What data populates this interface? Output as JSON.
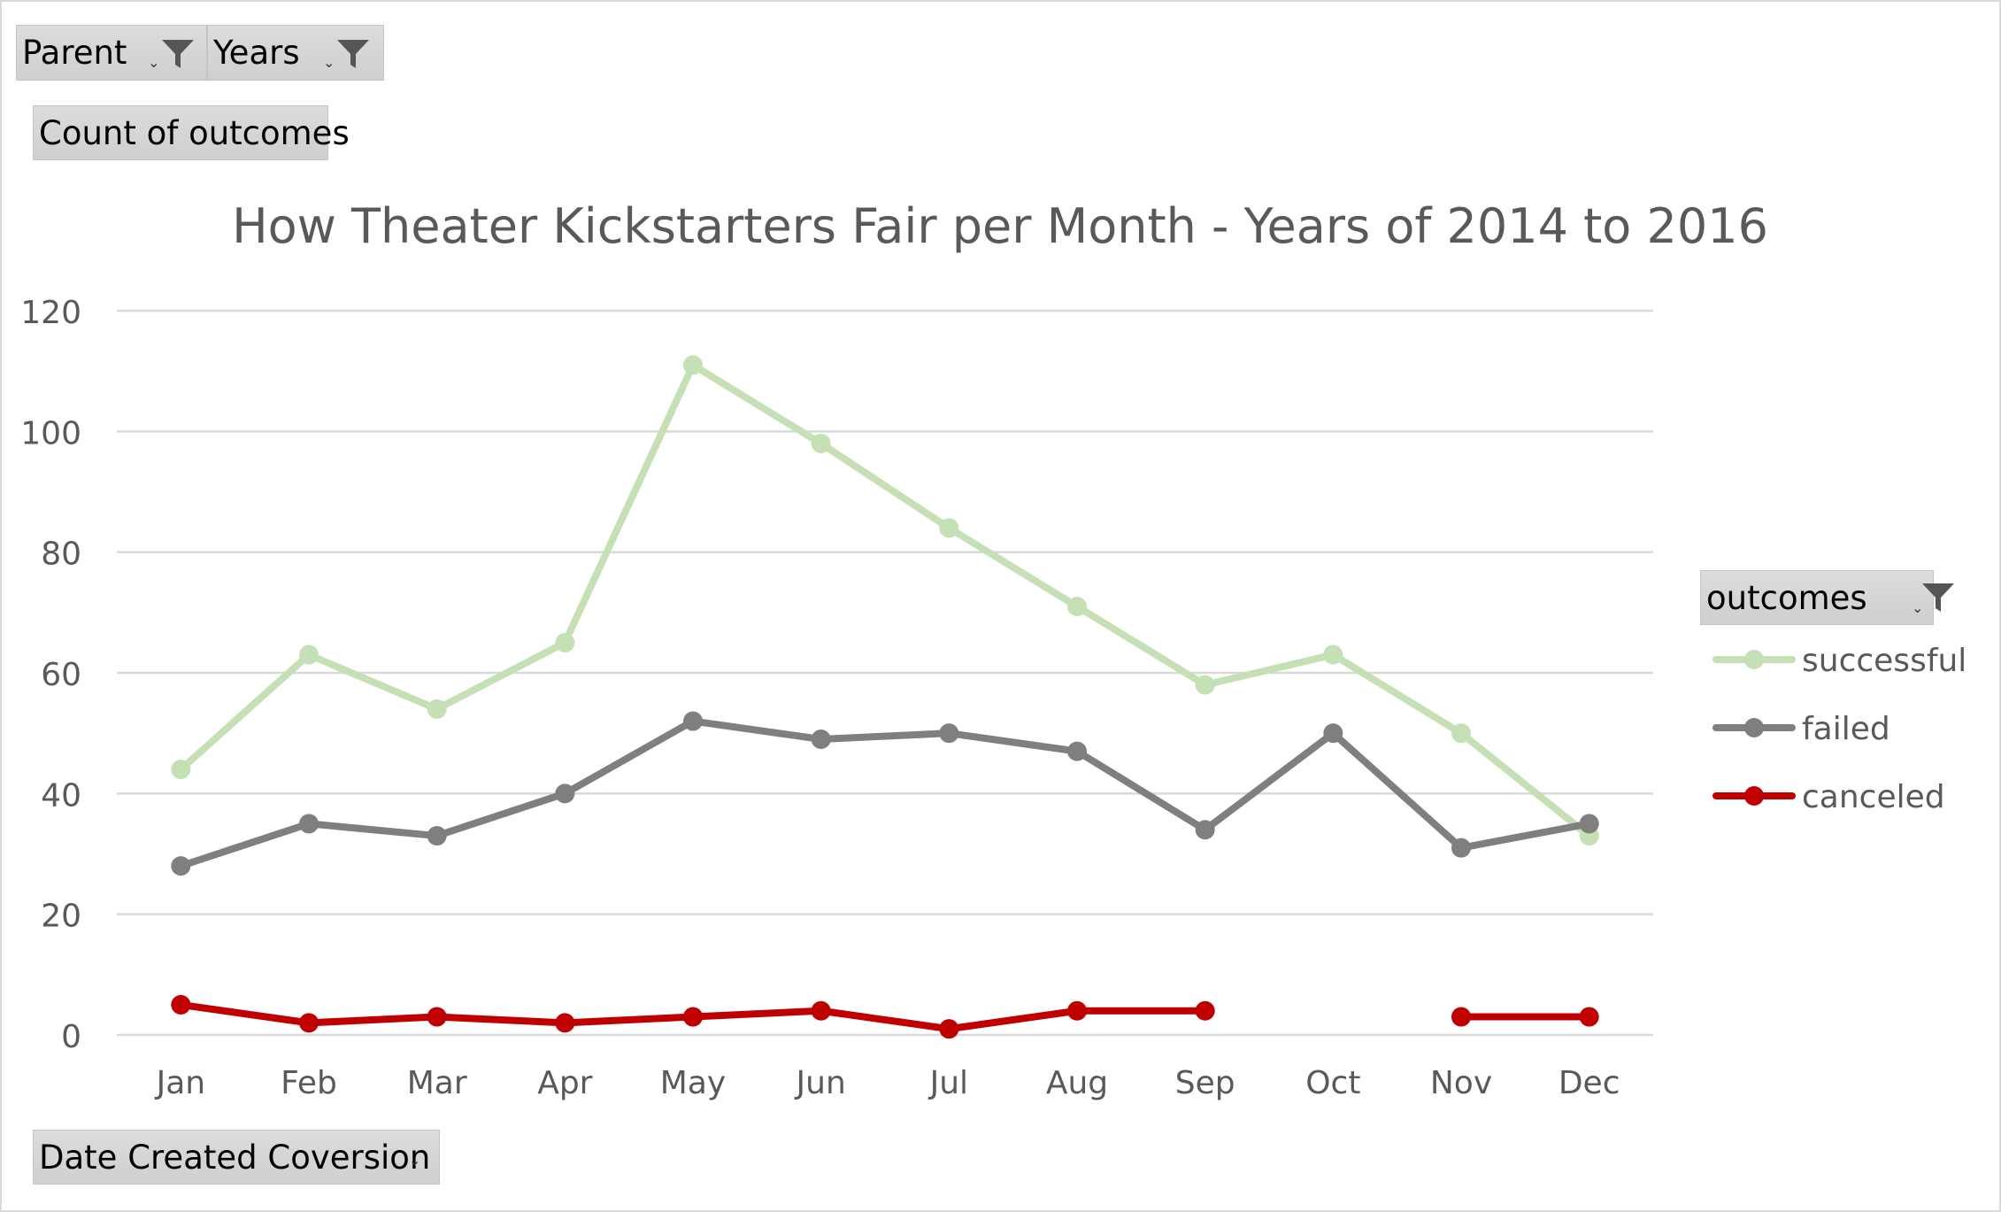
{
  "filters": {
    "parent_label": "Parent",
    "years_label": "Years",
    "values_label": "Count of outcomes",
    "axis_field_label": "Date Created Coversion",
    "legend_field_label": "outcomes"
  },
  "chart_data": {
    "type": "line",
    "title": "How Theater Kickstarters Fair per Month - Years of 2014 to 2016",
    "xlabel": "",
    "ylabel": "",
    "categories": [
      "Jan",
      "Feb",
      "Mar",
      "Apr",
      "May",
      "Jun",
      "Jul",
      "Aug",
      "Sep",
      "Oct",
      "Nov",
      "Dec"
    ],
    "ylim": [
      0,
      120
    ],
    "yticks": [
      0,
      20,
      40,
      60,
      80,
      100,
      120
    ],
    "grid": true,
    "legend_position": "right",
    "series": [
      {
        "name": "successful",
        "color": "#c5e0b4",
        "values": [
          44,
          63,
          54,
          65,
          111,
          98,
          84,
          71,
          58,
          63,
          50,
          33
        ]
      },
      {
        "name": "failed",
        "color": "#7f7f7f",
        "values": [
          28,
          35,
          33,
          40,
          52,
          49,
          50,
          47,
          34,
          50,
          31,
          35
        ]
      },
      {
        "name": "canceled",
        "color": "#c00000",
        "values": [
          5,
          2,
          3,
          2,
          3,
          4,
          1,
          4,
          4,
          null,
          3,
          3
        ]
      }
    ]
  }
}
